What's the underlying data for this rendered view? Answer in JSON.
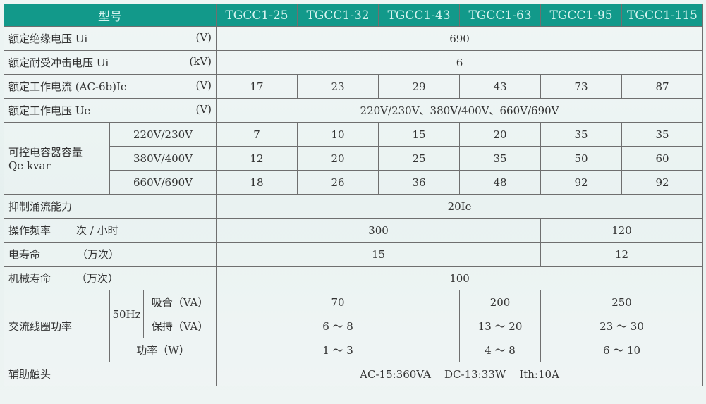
{
  "header": {
    "model_label": "型号",
    "models": [
      "TGCC1-25",
      "TGCC1-32",
      "TGCC1-43",
      "TGCC1-63",
      "TGCC1-95",
      "TGCC1-115"
    ]
  },
  "rows": {
    "insulation": {
      "label": "额定绝缘电压  Ui",
      "unit": "(V)",
      "value": "690"
    },
    "impulse": {
      "label": "额定耐受冲击电压 Ui",
      "unit": "(kV)",
      "value": "6"
    },
    "current": {
      "label": "额定工作电流 (AC-6b)Ie",
      "unit": "(V)",
      "values": [
        "17",
        "23",
        "29",
        "43",
        "73",
        "87"
      ]
    },
    "voltage": {
      "label": "额定工作电压 Ue",
      "unit": "(V)",
      "value": "220V/230V、380V/400V、660V/690V"
    },
    "capacity": {
      "label": "可控电容器容量",
      "label2": "Qe kvar",
      "sub": [
        {
          "label": "220V/230V",
          "values": [
            "7",
            "10",
            "15",
            "20",
            "35",
            "35"
          ]
        },
        {
          "label": "380V/400V",
          "values": [
            "12",
            "20",
            "25",
            "35",
            "50",
            "60"
          ]
        },
        {
          "label": "660V/690V",
          "values": [
            "18",
            "26",
            "36",
            "48",
            "92",
            "92"
          ]
        }
      ]
    },
    "surge": {
      "label": "抑制涌流能力",
      "value": "20Ie"
    },
    "frequency": {
      "label": "操作频率",
      "unit": "次 / 小时",
      "values": [
        "300",
        "120"
      ]
    },
    "electrical_life": {
      "label": "电寿命",
      "unit": "（万次）",
      "values": [
        "15",
        "12"
      ]
    },
    "mechanical_life": {
      "label": "机械寿命",
      "unit": "（万次）",
      "value": "100"
    },
    "coil": {
      "label": "交流线圈功率",
      "freq": "50Hz",
      "pickup": {
        "label": "吸合（VA）",
        "values": [
          "70",
          "200",
          "250"
        ]
      },
      "hold": {
        "label": "保持（VA）",
        "values": [
          "6 ～ 8",
          "13 ～ 20",
          "23 ～ 30"
        ]
      },
      "power": {
        "label": "功率（W）",
        "values": [
          "1 ～ 3",
          "4 ～ 8",
          "6 ～ 10"
        ]
      }
    },
    "aux": {
      "label": "辅助触头",
      "value": "AC-15:360VA    DC-13:33W    Ith:10A"
    }
  }
}
